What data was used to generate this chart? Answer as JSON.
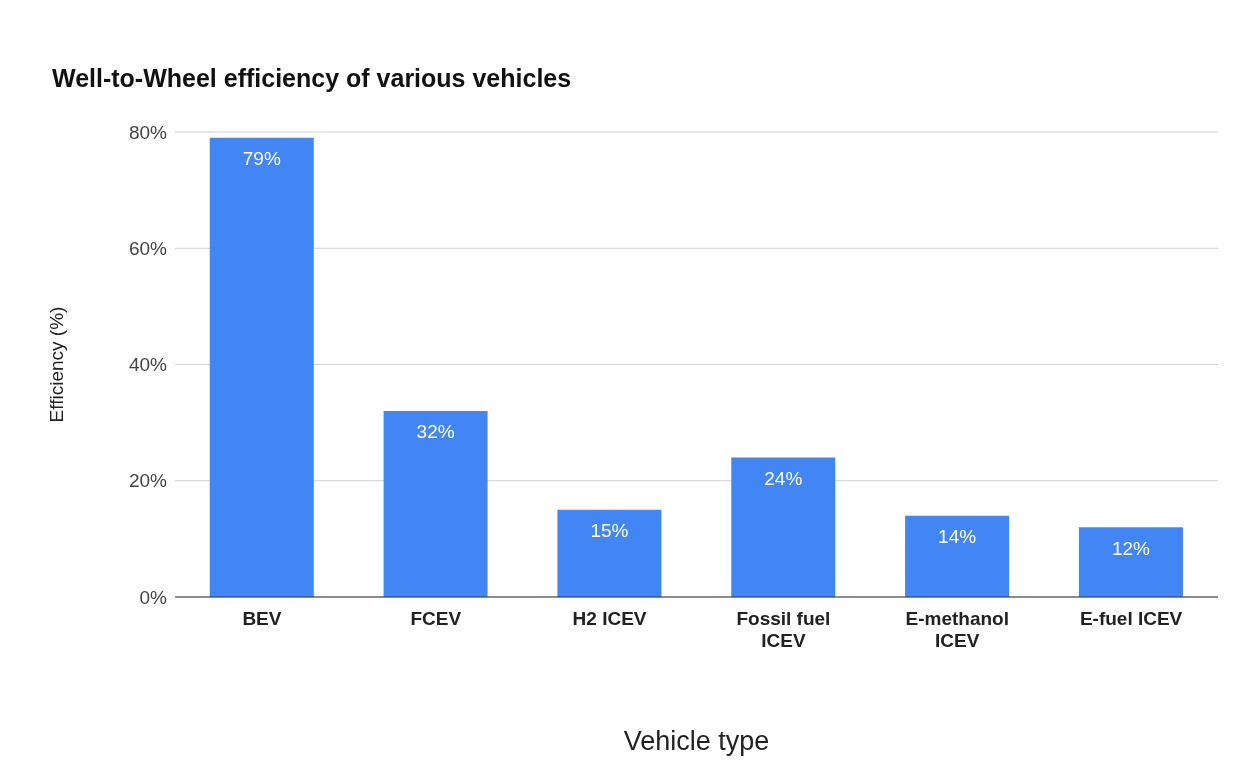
{
  "chart_data": {
    "type": "bar",
    "title": "Well-to-Wheel efficiency of various vehicles",
    "xlabel": "Vehicle type",
    "ylabel": "Efficiency (%)",
    "categories": [
      "BEV",
      "FCEV",
      "H2 ICEV",
      "Fossil fuel ICEV",
      "E-methanol ICEV",
      "E-fuel ICEV"
    ],
    "values": [
      79,
      32,
      15,
      24,
      14,
      12
    ],
    "value_labels": [
      "79%",
      "32%",
      "15%",
      "24%",
      "14%",
      "12%"
    ],
    "color": "#4285f4",
    "ylim": [
      0,
      80
    ],
    "yticks": [
      {
        "value": 0,
        "label": "0%"
      },
      {
        "value": 20,
        "label": "20%"
      },
      {
        "value": 40,
        "label": "40%"
      },
      {
        "value": 60,
        "label": "60%"
      },
      {
        "value": 80,
        "label": "80%"
      }
    ],
    "grid": "y",
    "legend": false
  }
}
